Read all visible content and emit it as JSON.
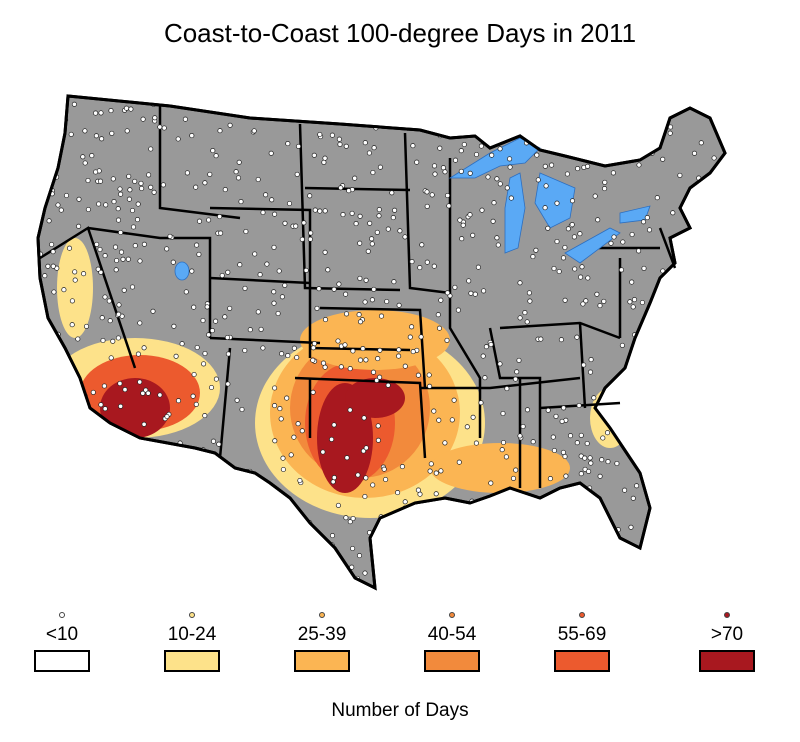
{
  "title": "Coast-to-Coast 100-degree Days in 2011",
  "legend": {
    "title": "Number of Days",
    "items": [
      {
        "label": "<10",
        "color": "#ffffff"
      },
      {
        "label": "10-24",
        "color": "#fde28a"
      },
      {
        "label": "25-39",
        "color": "#fbb553"
      },
      {
        "label": "40-54",
        "color": "#f28a3c"
      },
      {
        "label": "55-69",
        "color": "#ec5a2e"
      },
      {
        "label": ">70",
        "color": "#a8181f"
      }
    ]
  },
  "colors": {
    "land": "#999999",
    "water": "#5aa9f5",
    "station_marker": "#ffffff",
    "border": "#000000"
  }
}
